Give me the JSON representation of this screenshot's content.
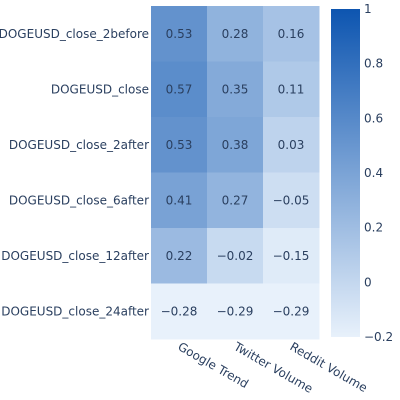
{
  "chart_data": {
    "type": "heatmap",
    "title": "",
    "rows": [
      "DOGEUSD_close_2before",
      "DOGEUSD_close",
      "DOGEUSD_close_2after",
      "DOGEUSD_close_6after",
      "DOGEUSD_close_12after",
      "DOGEUSD_close_24after"
    ],
    "columns": [
      "Google Trend",
      "Twitter Volume",
      "Reddit Volume"
    ],
    "values": [
      [
        0.53,
        0.28,
        0.16
      ],
      [
        0.57,
        0.35,
        0.11
      ],
      [
        0.53,
        0.38,
        0.03
      ],
      [
        0.41,
        0.27,
        -0.05
      ],
      [
        0.22,
        -0.02,
        -0.15
      ],
      [
        -0.28,
        -0.29,
        -0.29
      ]
    ],
    "value_labels": [
      [
        "0.53",
        "0.28",
        "0.16"
      ],
      [
        "0.57",
        "0.35",
        "0.11"
      ],
      [
        "0.53",
        "0.38",
        "0.03"
      ],
      [
        "0.41",
        "0.27",
        "−0.05"
      ],
      [
        "0.22",
        "−0.02",
        "−0.15"
      ],
      [
        "−0.28",
        "−0.29",
        "−0.29"
      ]
    ],
    "colorscale": {
      "min": -0.2,
      "max": 1,
      "low_color": "#e8f1fb",
      "high_color": "#0d55b0"
    },
    "colorbar_ticks": [
      {
        "value": 1,
        "label": "1"
      },
      {
        "value": 0.8,
        "label": "0.8"
      },
      {
        "value": 0.6,
        "label": "0.6"
      },
      {
        "value": 0.4,
        "label": "0.4"
      },
      {
        "value": 0.2,
        "label": "0.2"
      },
      {
        "value": 0,
        "label": "0"
      },
      {
        "value": -0.2,
        "label": "−0.2"
      }
    ]
  }
}
